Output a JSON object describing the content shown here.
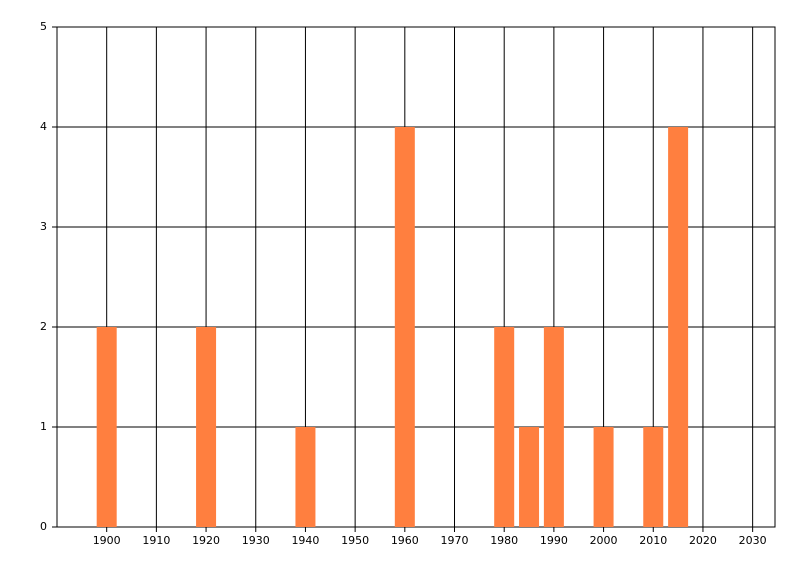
{
  "chart_data": {
    "type": "bar",
    "x": [
      1900,
      1920,
      1940,
      1960,
      1980,
      1985,
      1990,
      2000,
      2010,
      2015
    ],
    "values": [
      2,
      2,
      1,
      4,
      2,
      1,
      2,
      1,
      1,
      4
    ],
    "color": "#ff7f3f",
    "xlim": [
      1890,
      2034.5
    ],
    "xticks": [
      1900,
      1910,
      1920,
      1930,
      1940,
      1950,
      1960,
      1970,
      1980,
      1990,
      2000,
      2010,
      2020,
      2030
    ],
    "ylim": [
      0,
      5
    ],
    "yticks": [
      0,
      1,
      2,
      3,
      4,
      5
    ],
    "grid": true
  }
}
